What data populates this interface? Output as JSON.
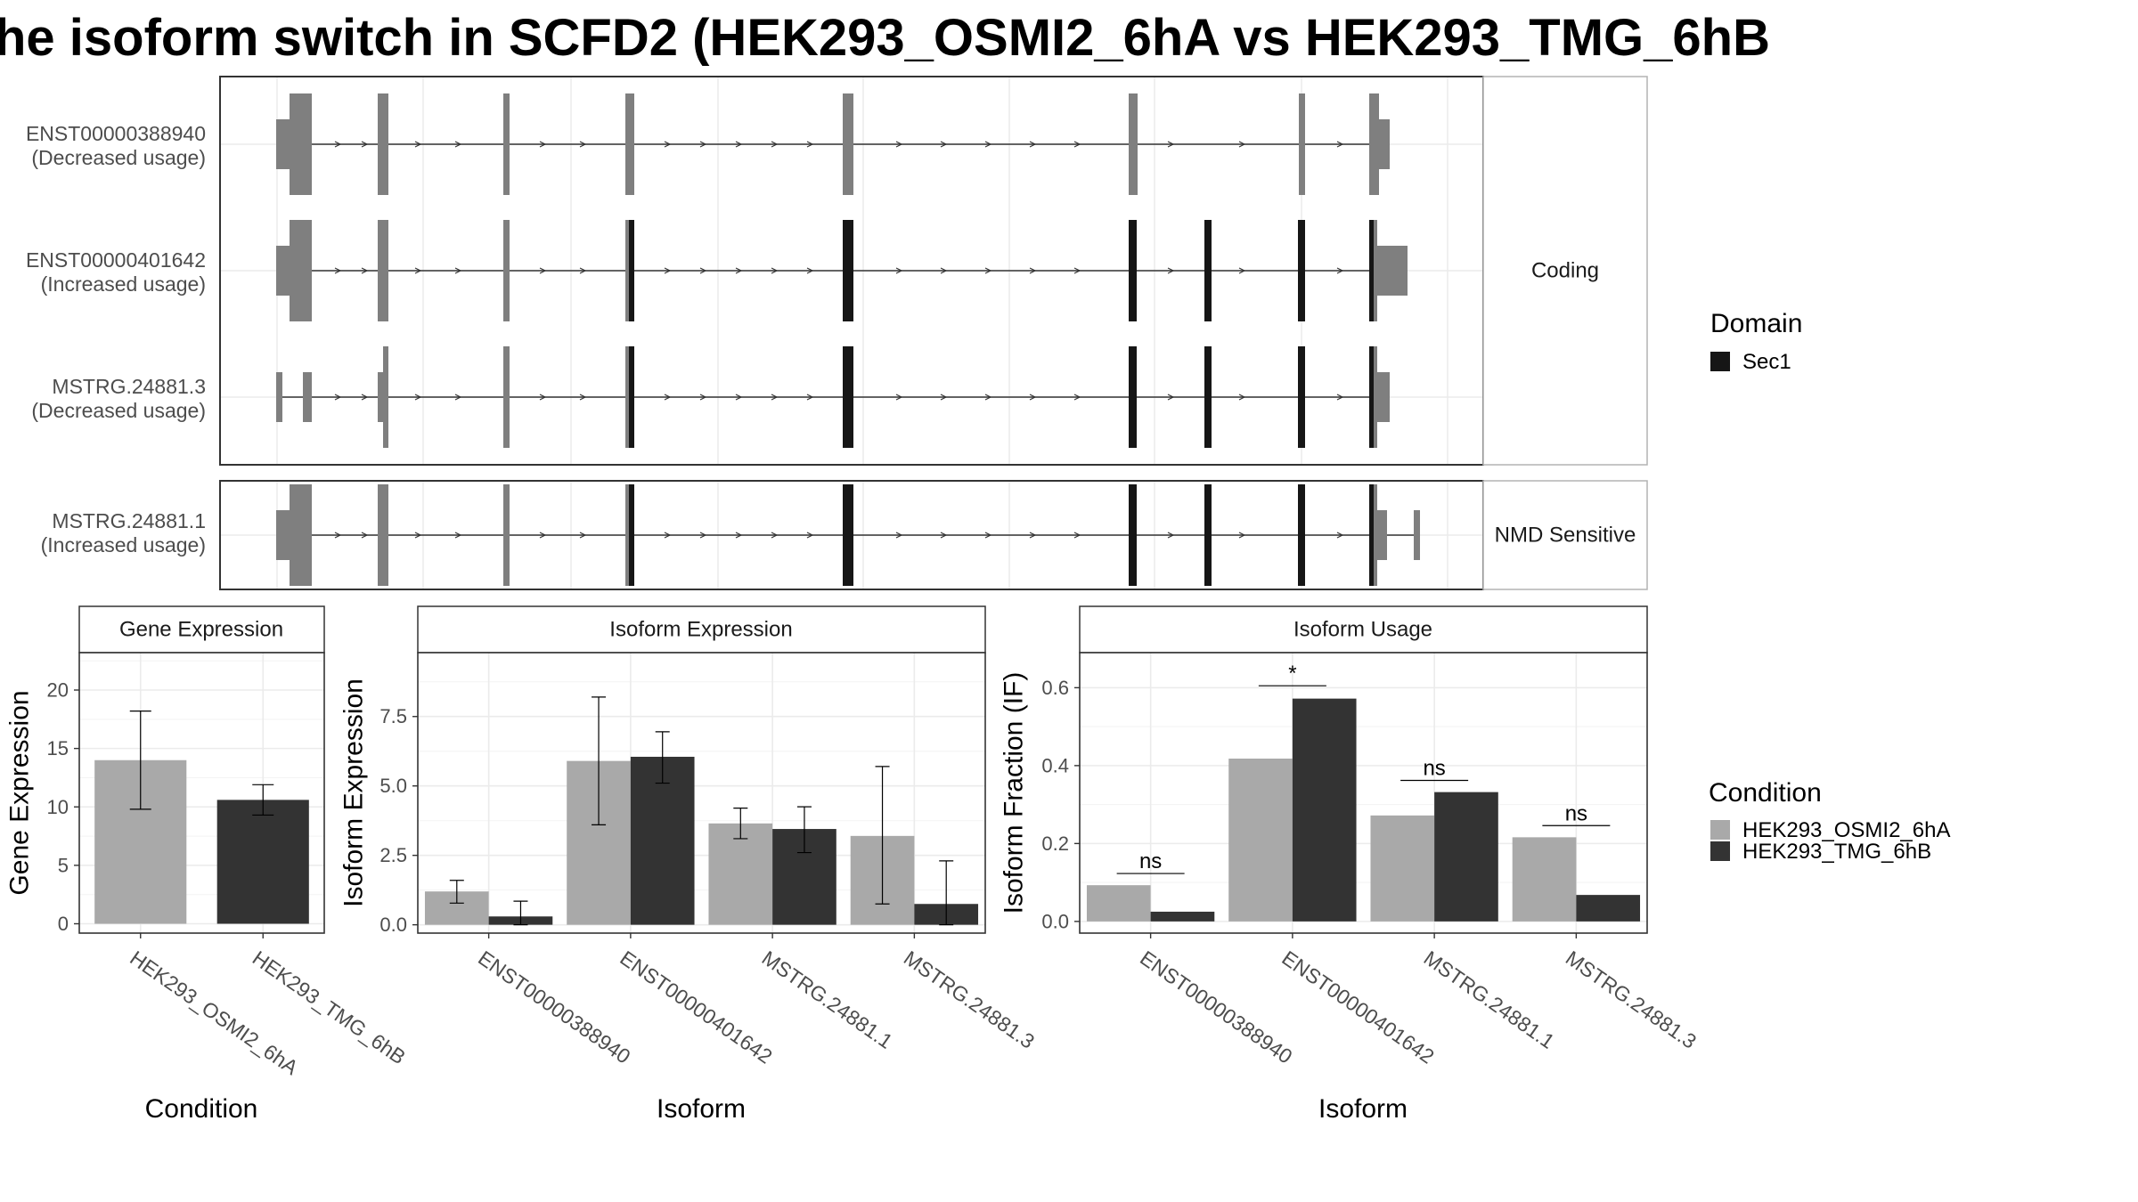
{
  "title": "he isoform switch in SCFD2 (HEK293_OSMI2_6hA vs HEK293_TMG_6hB",
  "colors": {
    "condition_a": "#a9a9a9",
    "condition_b": "#333333",
    "exon": "#7f7f7f",
    "domain_sec1": "#161616",
    "strip_bg": "#ffffff",
    "grid": "#ebebeb"
  },
  "structure": {
    "facets": [
      "Coding",
      "NMD Sensitive"
    ],
    "domain_legend": {
      "title": "Domain",
      "items": [
        "Sec1"
      ]
    },
    "transcripts": [
      {
        "id": "ENST00000388940",
        "label": "ENST00000388940",
        "usage": "(Decreased usage)",
        "facet": "Coding"
      },
      {
        "id": "ENST00000401642",
        "label": "ENST00000401642",
        "usage": "(Increased usage)",
        "facet": "Coding"
      },
      {
        "id": "MSTRG.24881.3",
        "label": "MSTRG.24881.3",
        "usage": "(Decreased usage)",
        "facet": "Coding"
      },
      {
        "id": "MSTRG.24881.1",
        "label": "MSTRG.24881.1",
        "usage": "(Increased usage)",
        "facet": "NMD Sensitive"
      }
    ]
  },
  "condition_legend": {
    "title": "Condition",
    "items": [
      "HEK293_OSMI2_6hA",
      "HEK293_TMG_6hB"
    ]
  },
  "chart_data": [
    {
      "type": "bar",
      "title": "Gene Expression",
      "xlabel": "Condition",
      "ylabel": "Gene Expression",
      "categories": [
        "HEK293_OSMI2_6hA",
        "HEK293_TMG_6hB"
      ],
      "values": [
        14.0,
        10.6
      ],
      "error_low": [
        9.8,
        9.3
      ],
      "error_high": [
        18.2,
        11.9
      ],
      "ylim": [
        -0.8,
        23.2
      ],
      "yticks": [
        0,
        5,
        10,
        15,
        20
      ],
      "ytick_labels": [
        "0",
        "5",
        "10",
        "15",
        "20"
      ]
    },
    {
      "type": "bar",
      "title": "Isoform Expression",
      "xlabel": "Isoform",
      "ylabel": "Isoform Expression",
      "categories": [
        "ENST00000388940",
        "ENST00000401642",
        "MSTRG.24881.1",
        "MSTRG.24881.3"
      ],
      "series": [
        {
          "name": "HEK293_OSMI2_6hA",
          "values": [
            1.2,
            5.9,
            3.65,
            3.2
          ],
          "error_low": [
            0.78,
            3.6,
            3.1,
            0.75
          ],
          "error_high": [
            1.6,
            8.2,
            4.2,
            5.7
          ]
        },
        {
          "name": "HEK293_TMG_6hB",
          "values": [
            0.3,
            6.05,
            3.45,
            0.75
          ],
          "error_low": [
            0.0,
            5.1,
            2.6,
            0.0
          ],
          "error_high": [
            0.85,
            6.95,
            4.25,
            2.3
          ]
        }
      ],
      "ylim": [
        -0.3,
        9.8
      ],
      "yticks": [
        0,
        2.5,
        5.0,
        7.5
      ],
      "ytick_labels": [
        "0.0",
        "2.5",
        "5.0",
        "7.5"
      ]
    },
    {
      "type": "bar",
      "title": "Isoform Usage",
      "xlabel": "Isoform",
      "ylabel": "Isoform Fraction (IF)",
      "categories": [
        "ENST00000388940",
        "ENST00000401642",
        "MSTRG.24881.1",
        "MSTRG.24881.3"
      ],
      "series": [
        {
          "name": "HEK293_OSMI2_6hA",
          "values": [
            0.093,
            0.418,
            0.272,
            0.216
          ]
        },
        {
          "name": "HEK293_TMG_6hB",
          "values": [
            0.025,
            0.572,
            0.332,
            0.068
          ]
        }
      ],
      "significance": [
        "ns",
        "*",
        "ns",
        "ns"
      ],
      "significance_y": [
        0.123,
        0.605,
        0.362,
        0.246
      ],
      "ylim": [
        -0.03,
        0.69
      ],
      "yticks": [
        0,
        0.2,
        0.4,
        0.6
      ],
      "ytick_labels": [
        "0.0",
        "0.2",
        "0.4",
        "0.6"
      ]
    }
  ]
}
